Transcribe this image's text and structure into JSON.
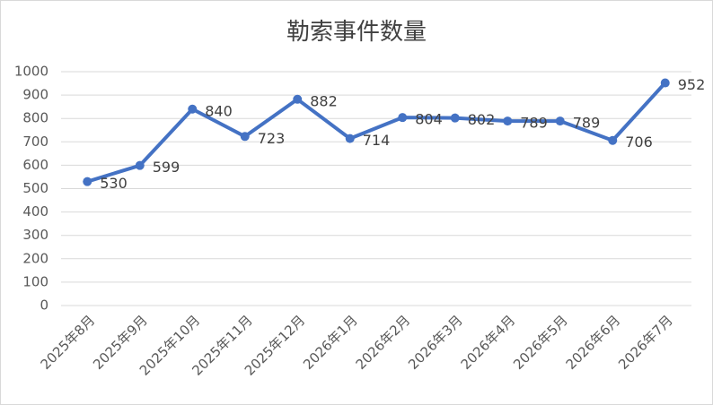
{
  "chart_data": {
    "type": "line",
    "title": "勒索事件数量",
    "categories": [
      "2025年8月",
      "2025年9月",
      "2025年10月",
      "2025年11月",
      "2025年12月",
      "2026年1月",
      "2026年2月",
      "2026年3月",
      "2026年4月",
      "2026年5月",
      "2026年6月",
      "2026年7月"
    ],
    "values": [
      530,
      599,
      840,
      723,
      882,
      714,
      804,
      802,
      789,
      789,
      706,
      952
    ],
    "color": "#4472c4",
    "ylim": [
      0,
      1000
    ],
    "yticks": [
      0,
      100,
      200,
      300,
      400,
      500,
      600,
      700,
      800,
      900,
      1000
    ],
    "grid": true
  }
}
